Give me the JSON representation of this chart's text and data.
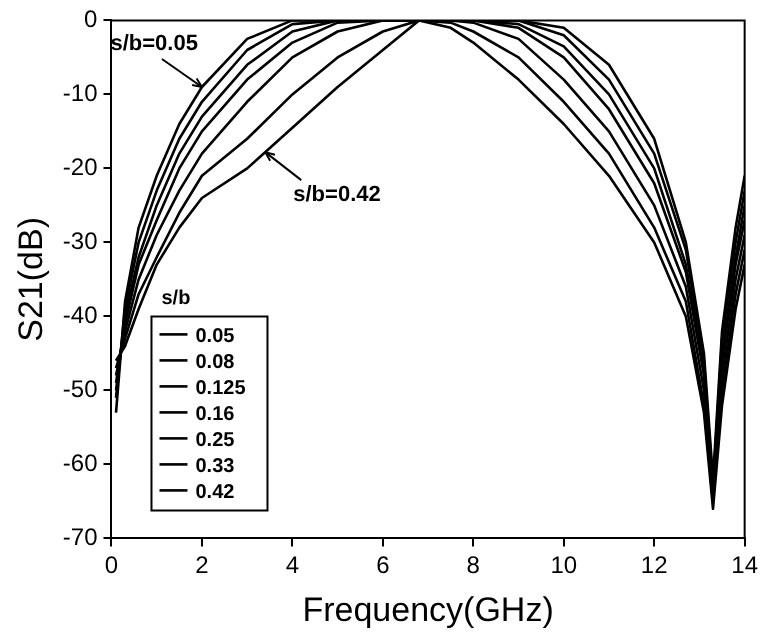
{
  "chart_data": {
    "type": "line",
    "xlabel": "Frequency(GHz)",
    "ylabel": "S21(dB)",
    "legend_title": "s/b",
    "legend": "bottom left",
    "grid": false,
    "marker": "none",
    "line_style": "solid",
    "x": [
      0.1,
      0.3,
      0.6,
      1,
      1.5,
      2,
      3,
      4,
      5,
      6,
      6.8,
      7.5,
      8,
      9,
      10,
      11,
      12,
      12.7,
      13.1,
      13.3,
      13.5,
      13.8,
      14
    ],
    "xlim": [
      0,
      14
    ],
    "xticks": [
      0,
      2,
      4,
      6,
      8,
      10,
      12,
      14
    ],
    "ylim": [
      -70,
      0
    ],
    "yticks": [
      -70,
      -60,
      -50,
      -40,
      -30,
      -20,
      -10,
      0
    ],
    "series": [
      {
        "name": "0.05",
        "color": "#000000",
        "values": [
          -53,
          -38,
          -28,
          -21,
          -14,
          -9,
          -2.5,
          0,
          0,
          0,
          0,
          0,
          0,
          0,
          -1,
          -6,
          -16,
          -30,
          -45,
          -62,
          -42,
          -28,
          -21
        ]
      },
      {
        "name": "0.08",
        "color": "#000000",
        "values": [
          -51,
          -39,
          -30,
          -23,
          -16,
          -11,
          -4,
          -0.5,
          0,
          0,
          0,
          0,
          0,
          0,
          -2,
          -8,
          -18,
          -31,
          -46,
          -63,
          -43,
          -30,
          -23
        ]
      },
      {
        "name": "0.125",
        "color": "#000000",
        "values": [
          -50,
          -40,
          -32,
          -25,
          -18,
          -13,
          -6,
          -1.5,
          0,
          0,
          0,
          0,
          0,
          -0.5,
          -3.5,
          -10,
          -20,
          -33,
          -47,
          -64,
          -45,
          -32,
          -25
        ]
      },
      {
        "name": "0.16",
        "color": "#000000",
        "values": [
          -49,
          -41,
          -33,
          -27,
          -20,
          -15,
          -8,
          -3,
          -0.3,
          0,
          0,
          0,
          0,
          -1,
          -5,
          -12,
          -22,
          -34,
          -48,
          -64,
          -46,
          -33,
          -27
        ]
      },
      {
        "name": "0.25",
        "color": "#000000",
        "values": [
          -48,
          -42,
          -35,
          -29,
          -23,
          -18,
          -11,
          -5,
          -1.5,
          0,
          0,
          0,
          -0.3,
          -2.5,
          -8,
          -15,
          -25,
          -36,
          -50,
          -65,
          -48,
          -35,
          -29
        ]
      },
      {
        "name": "0.33",
        "color": "#000000",
        "values": [
          -47,
          -43,
          -37,
          -32,
          -26,
          -21,
          -16,
          -10,
          -5,
          -1.5,
          0,
          -0.3,
          -1.5,
          -5,
          -11,
          -18,
          -28,
          -38,
          -52,
          -65,
          -50,
          -37,
          -31
        ]
      },
      {
        "name": "0.42",
        "color": "#000000",
        "values": [
          -46,
          -44,
          -39,
          -33,
          -28,
          -24,
          -20,
          -14.5,
          -9,
          -4,
          0,
          -1,
          -3,
          -8,
          -14,
          -21,
          -30,
          -40,
          -53,
          -66,
          -52,
          -39,
          -33
        ]
      }
    ],
    "annotations": [
      {
        "text": "s/b=0.05",
        "x": 2,
        "y": -9
      },
      {
        "text": "s/b=0.42",
        "x": 3.4,
        "y": -17.8
      }
    ]
  }
}
